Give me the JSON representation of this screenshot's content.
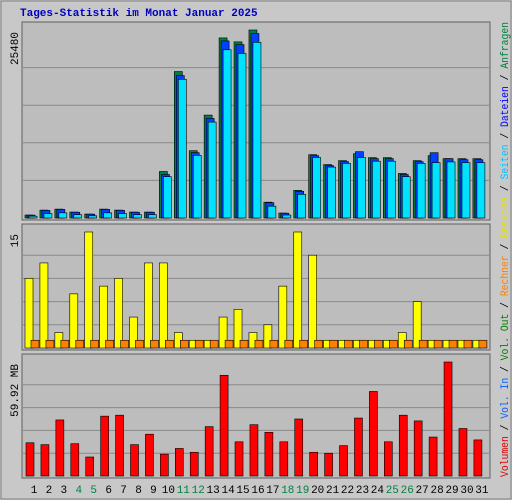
{
  "chart_data": {
    "type": "bar",
    "title": "Tages-Statistik im Monat Januar 2025",
    "categories": [
      "1",
      "2",
      "3",
      "4",
      "5",
      "6",
      "7",
      "8",
      "9",
      "10",
      "11",
      "12",
      "13",
      "14",
      "15",
      "16",
      "17",
      "18",
      "19",
      "20",
      "21",
      "22",
      "23",
      "24",
      "25",
      "26",
      "27",
      "28",
      "29",
      "30",
      "31"
    ],
    "category_colors": [
      "#000000",
      "#000000",
      "#000000",
      "#008040",
      "#008040",
      "#000000",
      "#000000",
      "#000000",
      "#000000",
      "#000000",
      "#008040",
      "#008040",
      "#000000",
      "#000000",
      "#000000",
      "#000000",
      "#000000",
      "#008040",
      "#008040",
      "#000000",
      "#000000",
      "#000000",
      "#000000",
      "#000000",
      "#008040",
      "#008040",
      "#000000",
      "#000000",
      "#000000",
      "#000000",
      "#000000"
    ],
    "panels": [
      {
        "ylim": [
          0,
          25480
        ],
        "yticks": [
          25480
        ],
        "series": [
          {
            "name": "Anfragen",
            "color": "#008040",
            "values": [
              402,
              1073,
              1207,
              805,
              536,
              1207,
              1073,
              805,
              805,
              6303,
              19847,
              9119,
              13946,
              24407,
              23871,
              25480,
              2146,
              671,
              3755,
              8582,
              7241,
              7778,
              8717,
              8180,
              8180,
              6035,
              7778,
              8449,
              8046,
              8046,
              8046
            ]
          },
          {
            "name": "Dateien",
            "color": "#0040ff",
            "values": [
              390,
              1040,
              1170,
              780,
              520,
              1170,
              1040,
              780,
              780,
              5900,
              19300,
              8850,
              13500,
              24000,
              23500,
              25000,
              2080,
              650,
              3620,
              8450,
              7100,
              7640,
              8990,
              8050,
              8050,
              5900,
              7640,
              8850,
              8050,
              7900,
              7900
            ]
          },
          {
            "name": "Seiten",
            "color": "#00e0ff",
            "values": [
              250,
              600,
              700,
              450,
              300,
              700,
              600,
              450,
              450,
              5600,
              18800,
              8500,
              13000,
              22800,
              22300,
              23800,
              1600,
              400,
              3200,
              8200,
              6900,
              7400,
              8200,
              7700,
              7700,
              5600,
              7400,
              7500,
              7600,
              7500,
              7500
            ]
          }
        ]
      },
      {
        "ylim": [
          0,
          15
        ],
        "yticks": [
          15
        ],
        "series": [
          {
            "name": "Besuche",
            "color": "#ffff00",
            "values": [
              9,
              11,
              2,
              7,
              15,
              8,
              9,
              4,
              11,
              11,
              2,
              1,
              1,
              4,
              5,
              2,
              3,
              8,
              15,
              12,
              1,
              1,
              1,
              1,
              1,
              2,
              6,
              1,
              1,
              1,
              1
            ]
          },
          {
            "name": "Rechner",
            "color": "#ff8000",
            "values": [
              1,
              1,
              1,
              1,
              1,
              1,
              1,
              1,
              1,
              1,
              1,
              1,
              1,
              1,
              1,
              1,
              1,
              1,
              1,
              1,
              1,
              1,
              1,
              1,
              1,
              1,
              1,
              1,
              1,
              1,
              1
            ]
          }
        ]
      },
      {
        "ylim": [
          0,
          59.92
        ],
        "yticks": [
          {
            "value": 59.92,
            "label": "59.92 MB"
          }
        ],
        "series": [
          {
            "name": "Volumen",
            "color": "#ff0000",
            "values": [
              17.48,
              16.48,
              29.46,
              16.98,
              9.99,
              31.46,
              31.96,
              16.48,
              21.97,
              11.48,
              14.48,
              12.48,
              25.96,
              52.93,
              17.98,
              26.96,
              22.97,
              17.98,
              29.96,
              12.48,
              11.98,
              15.98,
              30.46,
              44.44,
              17.98,
              31.96,
              28.96,
              20.47,
              59.92,
              24.97,
              18.97
            ]
          }
        ]
      }
    ],
    "legend_separator": " / ",
    "legend": [
      {
        "name": "Volumen",
        "color": "#e00000"
      },
      {
        "name": "Vol. In",
        "color": "#0060ff"
      },
      {
        "name": "Vol. Out",
        "color": "#008000"
      },
      {
        "name": "Rechner",
        "color": "#ff8000"
      },
      {
        "name": "Besuche",
        "color": "#e0e000"
      },
      {
        "name": "Seiten",
        "color": "#00c0ff"
      },
      {
        "name": "Dateien",
        "color": "#0000ff"
      },
      {
        "name": "Anfragen",
        "color": "#008040"
      }
    ]
  }
}
